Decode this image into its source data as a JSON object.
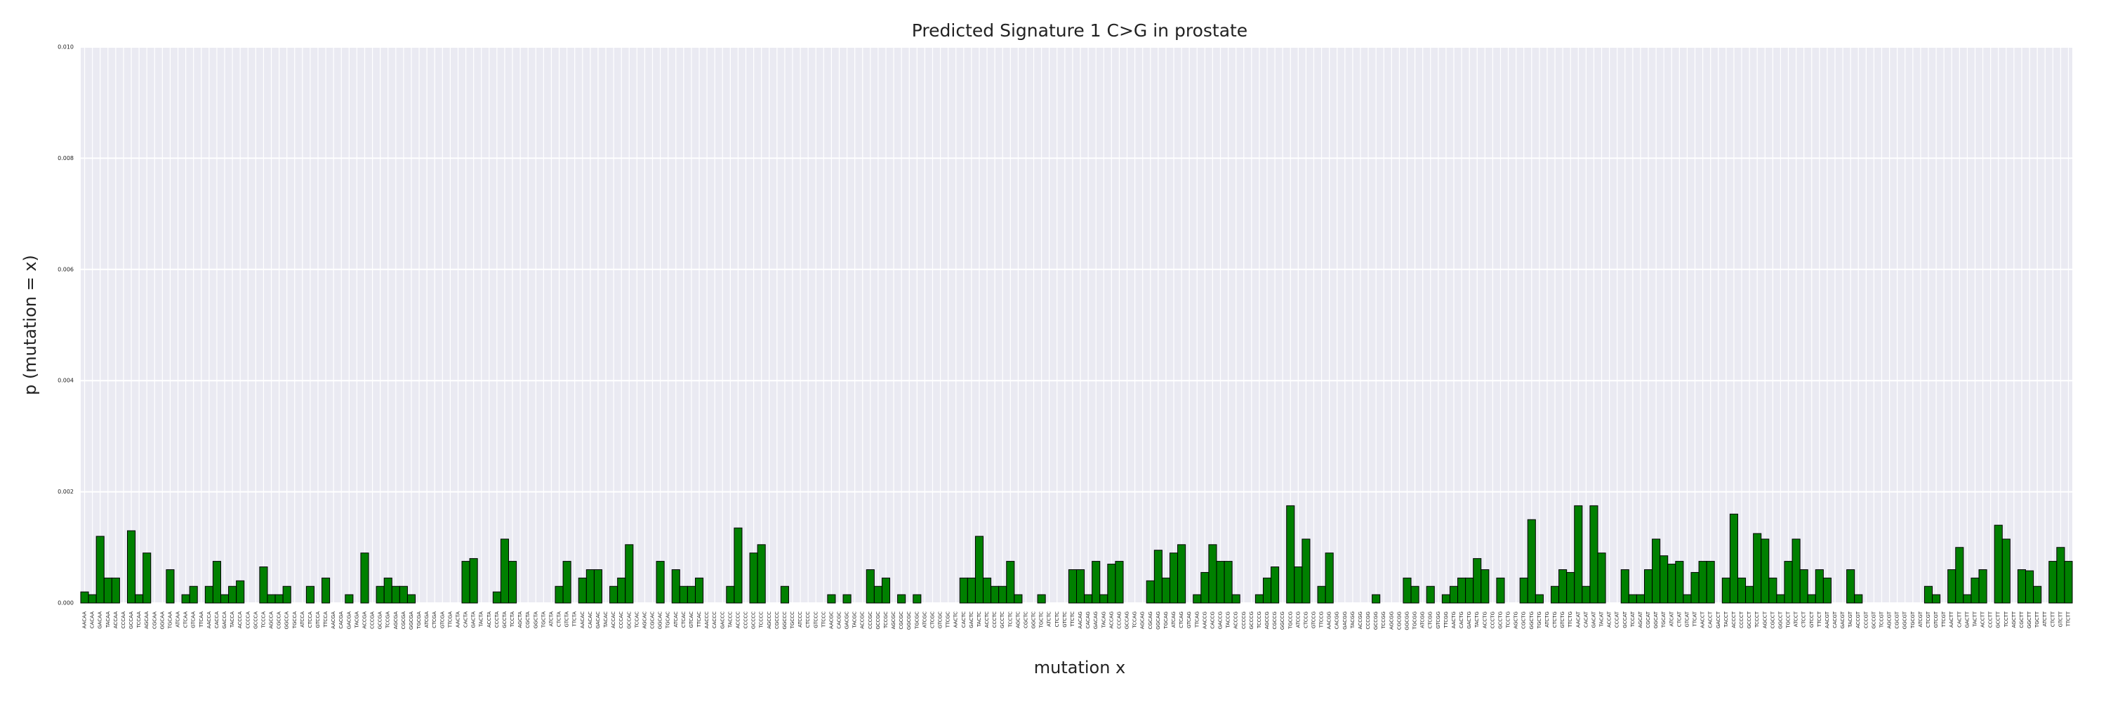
{
  "chart_data": {
    "type": "bar",
    "title": "Predicted Signature 1 C>G in prostate",
    "xlabel": "mutation x",
    "ylabel": "p (mutation = x)",
    "color": "#008000",
    "grid": true,
    "ylim": [
      0,
      0.01
    ],
    "yticks": [
      {
        "value": 0,
        "label": "0.000"
      },
      {
        "value": 0.002,
        "label": "0.002"
      },
      {
        "value": 0.004,
        "label": "0.004"
      },
      {
        "value": 0.006,
        "label": "0.006"
      },
      {
        "value": 0.008,
        "label": "0.008"
      },
      {
        "value": 0.01,
        "label": "0.010"
      }
    ],
    "categories": [
      "AACAA",
      "CACAA",
      "GACAA",
      "TACAA",
      "ACCAA",
      "CCCAA",
      "GCCAA",
      "TCCAA",
      "AGCAA",
      "CGCAA",
      "GGCAA",
      "TGCAA",
      "ATCAA",
      "CTCAA",
      "GTCAA",
      "TTCAA",
      "AACCA",
      "CACCA",
      "GACCA",
      "TACCA",
      "ACCCA",
      "CCCCA",
      "GCCCA",
      "TCCCA",
      "AGCCA",
      "CGCCA",
      "GGCCA",
      "TGCCA",
      "ATCCA",
      "CTCCA",
      "GTCCA",
      "TTCCA",
      "AACGA",
      "CACGA",
      "GACGA",
      "TACGA",
      "ACCGA",
      "CCCGA",
      "GCCGA",
      "TCCGA",
      "AGCGA",
      "CGCGA",
      "GGCGA",
      "TGCGA",
      "ATCGA",
      "CTCGA",
      "GTCGA",
      "TTCGA",
      "AACTA",
      "CACTA",
      "GACTA",
      "TACTA",
      "ACCTA",
      "CCCTA",
      "GCCTA",
      "TCCTA",
      "AGCTA",
      "CGCTA",
      "GGCTA",
      "TGCTA",
      "ATCTA",
      "CTCTA",
      "GTCTA",
      "TTCTA",
      "AACAC",
      "CACAC",
      "GACAC",
      "TACAC",
      "ACCAC",
      "CCCAC",
      "GCCAC",
      "TCCAC",
      "AGCAC",
      "CGCAC",
      "GGCAC",
      "TGCAC",
      "ATCAC",
      "CTCAC",
      "GTCAC",
      "TTCAC",
      "AACCC",
      "CACCC",
      "GACCC",
      "TACCC",
      "ACCCC",
      "CCCCC",
      "GCCCC",
      "TCCCC",
      "AGCCC",
      "CGCCC",
      "GGCCC",
      "TGCCC",
      "ATCCC",
      "CTCCC",
      "GTCCC",
      "TTCCC",
      "AACGC",
      "CACGC",
      "GACGC",
      "TACGC",
      "ACCGC",
      "CCCGC",
      "GCCGC",
      "TCCGC",
      "AGCGC",
      "CGCGC",
      "GGCGC",
      "TGCGC",
      "ATCGC",
      "CTCGC",
      "GTCGC",
      "TTCGC",
      "AACTC",
      "CACTC",
      "GACTC",
      "TACTC",
      "ACCTC",
      "CCCTC",
      "GCCTC",
      "TCCTC",
      "AGCTC",
      "CGCTC",
      "GGCTC",
      "TGCTC",
      "ATCTC",
      "CTCTC",
      "GTCTC",
      "TTCTC",
      "AACAG",
      "CACAG",
      "GACAG",
      "TACAG",
      "ACCAG",
      "CCCAG",
      "GCCAG",
      "TCCAG",
      "AGCAG",
      "CGCAG",
      "GGCAG",
      "TGCAG",
      "ATCAG",
      "CTCAG",
      "GTCAG",
      "TTCAG",
      "AACCG",
      "CACCG",
      "GACCG",
      "TACCG",
      "ACCCG",
      "CCCCG",
      "GCCCG",
      "TCCCG",
      "AGCCG",
      "CGCCG",
      "GGCCG",
      "TGCCG",
      "ATCCG",
      "CTCCG",
      "GTCCG",
      "TTCCG",
      "AACGG",
      "CACGG",
      "GACGG",
      "TACGG",
      "ACCGG",
      "CCCGG",
      "GCCGG",
      "TCCGG",
      "AGCGG",
      "CGCGG",
      "GGCGG",
      "TGCGG",
      "ATCGG",
      "CTCGG",
      "GTCGG",
      "TTCGG",
      "AACTG",
      "CACTG",
      "GACTG",
      "TACTG",
      "ACCTG",
      "CCCTG",
      "GCCTG",
      "TCCTG",
      "AGCTG",
      "CGCTG",
      "GGCTG",
      "TGCTG",
      "ATCTG",
      "CTCTG",
      "GTCTG",
      "TTCTG",
      "AACAT",
      "CACAT",
      "GACAT",
      "TACAT",
      "ACCAT",
      "CCCAT",
      "GCCAT",
      "TCCAT",
      "AGCAT",
      "CGCAT",
      "GGCAT",
      "TGCAT",
      "ATCAT",
      "CTCAT",
      "GTCAT",
      "TTCAT",
      "AACCT",
      "CACCT",
      "GACCT",
      "TACCT",
      "ACCCT",
      "CCCCT",
      "GCCCT",
      "TCCCT",
      "AGCCT",
      "CGCCT",
      "GGCCT",
      "TGCCT",
      "ATCCT",
      "CTCCT",
      "GTCCT",
      "TTCCT",
      "AACGT",
      "CACGT",
      "GACGT",
      "TACGT",
      "ACCGT",
      "CCCGT",
      "GCCGT",
      "TCCGT",
      "AGCGT",
      "CGCGT",
      "GGCGT",
      "TGCGT",
      "ATCGT",
      "CTCGT",
      "GTCGT",
      "TTCGT",
      "AACTT",
      "CACTT",
      "GACTT",
      "TACTT",
      "ACCTT",
      "CCCTT",
      "GCCTT",
      "TCCTT",
      "AGCTT",
      "CGCTT",
      "GGCTT",
      "TGCTT",
      "ATCTT",
      "CTCTT",
      "GTCTT",
      "TTCTT"
    ],
    "values": [
      0.0002,
      0.00015,
      0.0012,
      0.00045,
      0.00045,
      0,
      0.0013,
      0.00015,
      0.0009,
      0,
      0,
      0.0006,
      0,
      0.00015,
      0.0003,
      0,
      0.0003,
      0.00075,
      0.00015,
      0.0003,
      0.0004,
      0,
      0,
      0.00065,
      0.00015,
      0.00015,
      0.0003,
      0,
      0,
      0.0003,
      0,
      0.00045,
      0,
      0,
      0.00015,
      0,
      0.0009,
      0,
      0.0003,
      0.00045,
      0.0003,
      0.0003,
      0.00015,
      0,
      0,
      0,
      0,
      0,
      0,
      0.00075,
      0.0008,
      0,
      0,
      0.0002,
      0.00115,
      0.00075,
      0,
      0,
      0,
      0,
      0,
      0.0003,
      0.00075,
      0,
      0.00045,
      0.0006,
      0.0006,
      0,
      0.0003,
      0.00045,
      0.00105,
      0,
      0,
      0,
      0.00075,
      0,
      0.0006,
      0.0003,
      0.0003,
      0.00045,
      0,
      0,
      0,
      0.0003,
      0.00135,
      0,
      0.0009,
      0.00105,
      0,
      0,
      0.0003,
      0,
      0,
      0,
      0,
      0,
      0.00015,
      0,
      0.00015,
      0,
      0,
      0.0006,
      0.0003,
      0.00045,
      0,
      0.00015,
      0,
      0.00015,
      0,
      0,
      0,
      0,
      0,
      0.00045,
      0.00045,
      0.0012,
      0.00045,
      0.0003,
      0.0003,
      0.00075,
      0.00015,
      0,
      0,
      0.00015,
      0,
      0,
      0,
      0.0006,
      0.0006,
      0.00015,
      0.00075,
      0.00015,
      0.0007,
      0.00075,
      0,
      0,
      0,
      0.0004,
      0.00095,
      0.00045,
      0.0009,
      0.00105,
      0,
      0.00015,
      0.00055,
      0.00105,
      0.00075,
      0.00075,
      0.00015,
      0,
      0,
      0.00015,
      0.00045,
      0.00065,
      0,
      0.00175,
      0.00065,
      0.00115,
      0,
      0.0003,
      0.0009,
      0,
      0,
      0,
      0,
      0,
      0.00015,
      0,
      0,
      0,
      0.00045,
      0.0003,
      0,
      0.0003,
      0,
      0.00015,
      0.0003,
      0.00045,
      0.00045,
      0.0008,
      0.0006,
      0,
      0.00045,
      0,
      0,
      0.00045,
      0.0015,
      0.00015,
      0,
      0.0003,
      0.0006,
      0.00055,
      0.00175,
      0.0003,
      0.00175,
      0.0009,
      0,
      0,
      0.0006,
      0.00015,
      0.00015,
      0.0006,
      0.00115,
      0.00085,
      0.0007,
      0.00075,
      0.00015,
      0.00055,
      0.00075,
      0.00075,
      0,
      0.00045,
      0.0016,
      0.00045,
      0.0003,
      0.00125,
      0.00115,
      0.00045,
      0.00015,
      0.00075,
      0.00115,
      0.0006,
      0.00015,
      0.0006,
      0.00045,
      0,
      0,
      0.0006,
      0.00015,
      0,
      0,
      0,
      0,
      0,
      0,
      0,
      0,
      0.0003,
      0.00015,
      0,
      0.0006,
      0.001,
      0.00015,
      0.00045,
      0.0006,
      0,
      0.0014,
      0.00115,
      0,
      0.0006,
      0.00058,
      0.0003,
      0,
      0.00075,
      0.001,
      0.00075
    ]
  }
}
